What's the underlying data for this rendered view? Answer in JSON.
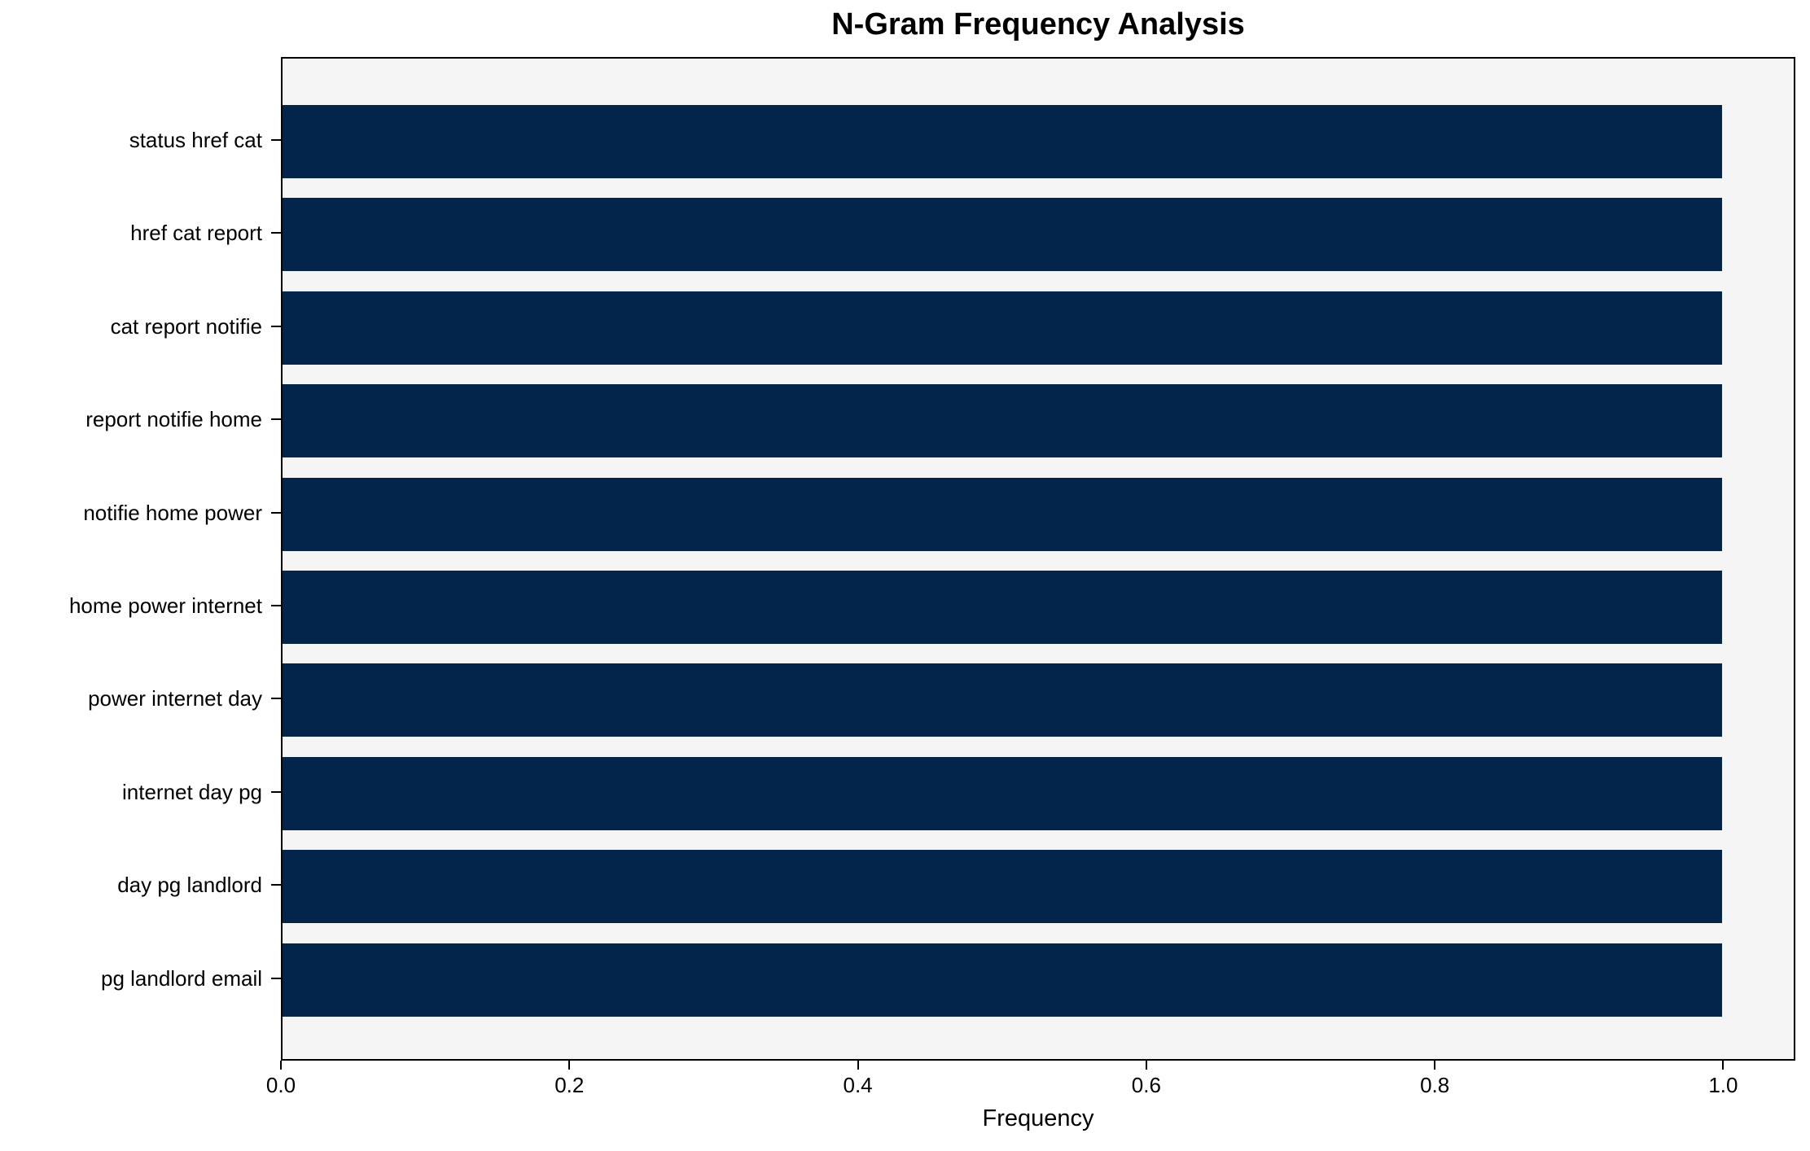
{
  "title": "N-Gram Frequency Analysis",
  "chart_data": {
    "type": "bar",
    "orientation": "horizontal",
    "title": "N-Gram Frequency Analysis",
    "xlabel": "Frequency",
    "ylabel": "",
    "categories": [
      "status href cat",
      "href cat report",
      "cat report notifie",
      "report notifie home",
      "notifie home power",
      "home power internet",
      "power internet day",
      "internet day pg",
      "day pg landlord",
      "pg landlord email"
    ],
    "values": [
      1.0,
      1.0,
      1.0,
      1.0,
      1.0,
      1.0,
      1.0,
      1.0,
      1.0,
      1.0
    ],
    "xticks": [
      "0.0",
      "0.2",
      "0.4",
      "0.6",
      "0.8",
      "1.0"
    ],
    "xtick_values": [
      0.0,
      0.2,
      0.4,
      0.6,
      0.8,
      1.0
    ],
    "xlim": [
      0.0,
      1.05
    ],
    "grid": false,
    "legend": null,
    "colors": {
      "bar": "#03254c",
      "plot_background": "#f5f5f5",
      "figure_background": "#ffffff",
      "axis": "#000000",
      "text": "#000000"
    }
  }
}
